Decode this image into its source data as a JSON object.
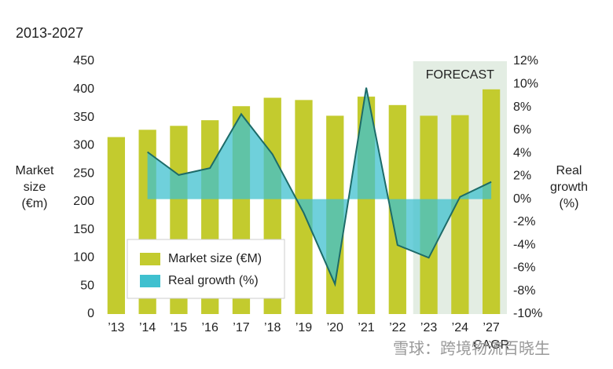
{
  "chart_data": {
    "type": "bar-area",
    "title": "2013-2027",
    "ylabel": [
      "Market",
      "size",
      "(€m)"
    ],
    "y2label": [
      "Real",
      "growth",
      "(%)"
    ],
    "forecast_label": "FORECAST",
    "cagr_label": "CAGR",
    "watermark": "雪球：跨境物流百晓生",
    "categories": [
      "’13",
      "’14",
      "’15",
      "’16",
      "’17",
      "’18",
      "’19",
      "’20",
      "’21",
      "’22",
      "’23",
      "’24",
      "’27"
    ],
    "forecast_start": 10,
    "series": [
      {
        "name": "Market size (€M)",
        "color": "#c3cb2e",
        "axis": "y",
        "values": [
          315,
          328,
          335,
          345,
          370,
          385,
          381,
          353,
          387,
          372,
          353,
          354,
          400
        ]
      },
      {
        "name": "Real growth (%)",
        "color": "#3fc0cf",
        "line_color": "#1d6b68",
        "axis": "y2",
        "values": [
          null,
          4.1,
          2.1,
          2.7,
          7.4,
          3.9,
          -1.2,
          -7.4,
          9.7,
          -4.0,
          -5.1,
          0.2,
          1.5
        ]
      }
    ],
    "ylim": [
      0,
      450
    ],
    "yticks": [
      0,
      50,
      100,
      150,
      200,
      250,
      300,
      350,
      400,
      450
    ],
    "y2lim": [
      -10,
      12
    ],
    "y2ticks": [
      {
        "value": -10,
        "label": "-10%"
      },
      {
        "value": -8,
        "label": "-8%"
      },
      {
        "value": -6,
        "label": "-6%"
      },
      {
        "value": -4,
        "label": "-4%"
      },
      {
        "value": -2,
        "label": "-2%"
      },
      {
        "value": 0,
        "label": "0%"
      },
      {
        "value": 2,
        "label": "2%"
      },
      {
        "value": 4,
        "label": "4%"
      },
      {
        "value": 6,
        "label": "6%"
      },
      {
        "value": 8,
        "label": "8%"
      },
      {
        "value": 10,
        "label": "10%"
      },
      {
        "value": 12,
        "label": "12%"
      }
    ],
    "forecast_color": "#e3ede3"
  }
}
